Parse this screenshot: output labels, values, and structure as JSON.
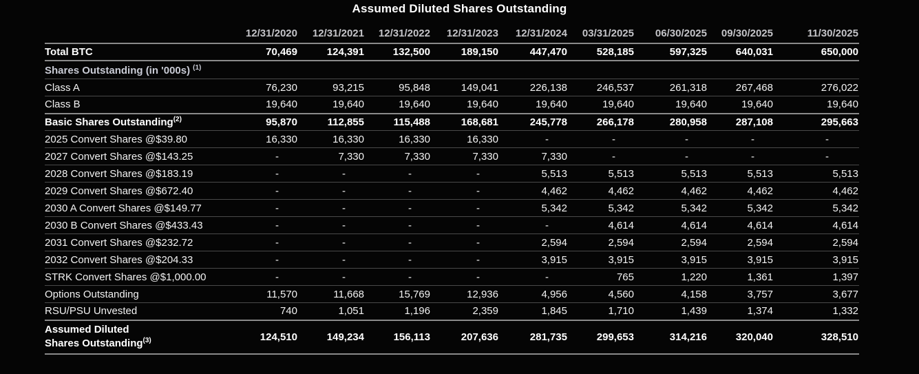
{
  "title": "Assumed Diluted Shares Outstanding",
  "chart_data": {
    "type": "table",
    "title": "Assumed Diluted Shares Outstanding",
    "columns": [
      "12/31/2020",
      "12/31/2021",
      "12/31/2022",
      "12/31/2023",
      "12/31/2024",
      "03/31/2025",
      "06/30/2025",
      "09/30/2025",
      "11/30/2025"
    ],
    "rows": [
      {
        "label": "Total BTC",
        "style": "bold",
        "divider": "strong",
        "values": [
          "70,469",
          "124,391",
          "132,500",
          "189,150",
          "447,470",
          "528,185",
          "597,325",
          "640,031",
          "650,000"
        ]
      },
      {
        "label": "Shares Outstanding (in '000s)",
        "sup": "(1)",
        "style": "section",
        "divider": "thin",
        "values": []
      },
      {
        "label": "Class A",
        "style": "regular",
        "divider": "thin",
        "values": [
          "76,230",
          "93,215",
          "95,848",
          "149,041",
          "226,138",
          "246,537",
          "261,318",
          "267,468",
          "276,022"
        ]
      },
      {
        "label": "Class B",
        "style": "regular",
        "divider": "strong",
        "values": [
          "19,640",
          "19,640",
          "19,640",
          "19,640",
          "19,640",
          "19,640",
          "19,640",
          "19,640",
          "19,640"
        ]
      },
      {
        "label": "Basic Shares Outstanding",
        "sup": "(2)",
        "style": "bold",
        "divider": "thin",
        "values": [
          "95,870",
          "112,855",
          "115,488",
          "168,681",
          "245,778",
          "266,178",
          "280,958",
          "287,108",
          "295,663"
        ]
      },
      {
        "label": "2025 Convert Shares @$39.80",
        "style": "regular",
        "divider": "thin",
        "values": [
          "16,330",
          "16,330",
          "16,330",
          "16,330",
          "-",
          "-",
          "-",
          "-",
          "-"
        ]
      },
      {
        "label": "2027 Convert Shares @$143.25",
        "style": "regular",
        "divider": "thin",
        "values": [
          "-",
          "7,330",
          "7,330",
          "7,330",
          "7,330",
          "-",
          "-",
          "-",
          "-"
        ]
      },
      {
        "label": "2028 Convert Shares @$183.19",
        "style": "regular",
        "divider": "thin",
        "values": [
          "-",
          "-",
          "-",
          "-",
          "5,513",
          "5,513",
          "5,513",
          "5,513",
          "5,513"
        ]
      },
      {
        "label": "2029 Convert Shares @$672.40",
        "style": "regular",
        "divider": "thin",
        "values": [
          "-",
          "-",
          "-",
          "-",
          "4,462",
          "4,462",
          "4,462",
          "4,462",
          "4,462"
        ]
      },
      {
        "label": "2030 A Convert Shares @$149.77",
        "style": "regular",
        "divider": "thin",
        "values": [
          "-",
          "-",
          "-",
          "-",
          "5,342",
          "5,342",
          "5,342",
          "5,342",
          "5,342"
        ]
      },
      {
        "label": "2030 B Convert Shares @$433.43",
        "style": "regular",
        "divider": "thin",
        "values": [
          "-",
          "-",
          "-",
          "-",
          "-",
          "4,614",
          "4,614",
          "4,614",
          "4,614"
        ]
      },
      {
        "label": "2031 Convert Shares @$232.72",
        "style": "regular",
        "divider": "thin",
        "values": [
          "-",
          "-",
          "-",
          "-",
          "2,594",
          "2,594",
          "2,594",
          "2,594",
          "2,594"
        ]
      },
      {
        "label": "2032 Convert Shares @$204.33",
        "style": "regular",
        "divider": "thin",
        "values": [
          "-",
          "-",
          "-",
          "-",
          "3,915",
          "3,915",
          "3,915",
          "3,915",
          "3,915"
        ]
      },
      {
        "label": "STRK Convert Shares @$1,000.00",
        "style": "regular",
        "divider": "thin",
        "values": [
          "-",
          "-",
          "-",
          "-",
          "-",
          "765",
          "1,220",
          "1,361",
          "1,397"
        ]
      },
      {
        "label": "Options Outstanding",
        "style": "regular",
        "divider": "thin",
        "values": [
          "11,570",
          "11,668",
          "15,769",
          "12,936",
          "4,956",
          "4,560",
          "4,158",
          "3,757",
          "3,677"
        ]
      },
      {
        "label": "RSU/PSU Unvested",
        "style": "regular",
        "divider": "strong",
        "values": [
          "740",
          "1,051",
          "1,196",
          "2,359",
          "1,845",
          "1,710",
          "1,439",
          "1,374",
          "1,332"
        ]
      },
      {
        "label_lines": [
          "Assumed Diluted",
          "Shares Outstanding"
        ],
        "sup": "(3)",
        "style": "bold",
        "divider": "strong",
        "values": [
          "124,510",
          "149,234",
          "156,113",
          "207,636",
          "281,735",
          "299,653",
          "314,216",
          "320,040",
          "328,510"
        ]
      }
    ]
  },
  "colors": {
    "background": "#050505",
    "row_text": "#f2f2f2",
    "bold_text": "#ffffff",
    "header_text": "#c4c4c8",
    "section_text": "#c9cbd5",
    "line_strong": "#8a8a8a",
    "line_thin": "#4a4a4a"
  }
}
